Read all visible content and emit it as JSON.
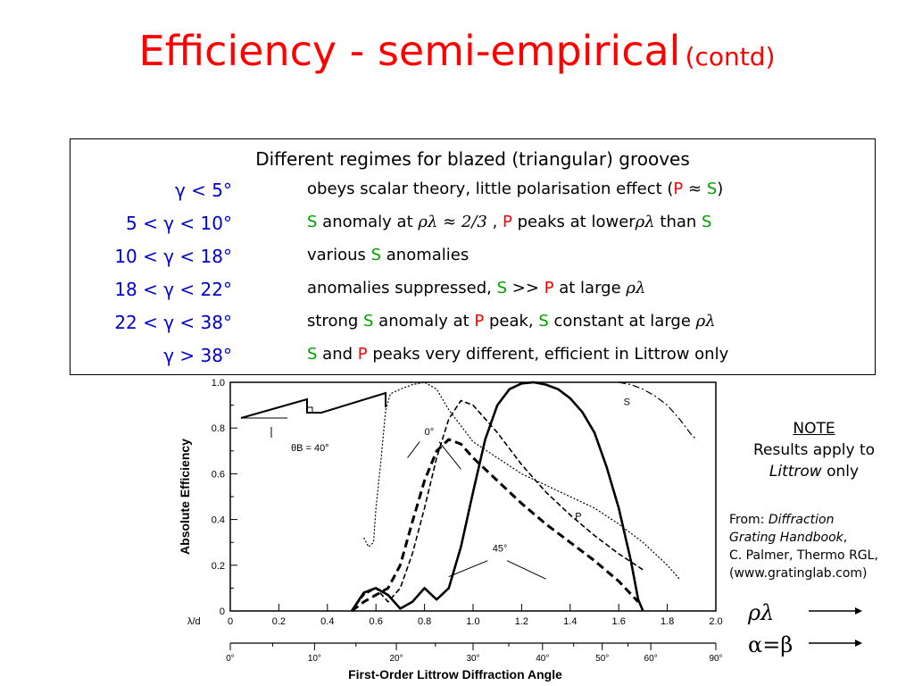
{
  "slide": {
    "title": "Efficiency - semi-empirical",
    "title_suffix": "(contd)"
  },
  "regimes": {
    "heading": "Different regimes for blazed (triangular) grooves",
    "rows": [
      {
        "cond": "γ  < 5°",
        "parts": [
          {
            "t": "obeys scalar theory, little polarisation effect (",
            "c": ""
          },
          {
            "t": "P",
            "c": "red"
          },
          {
            "t": " ≈ ",
            "c": ""
          },
          {
            "t": "S",
            "c": "green"
          },
          {
            "t": ")",
            "c": ""
          }
        ]
      },
      {
        "cond": "5 < γ < 10°",
        "parts": [
          {
            "t": "S",
            "c": "green"
          },
          {
            "t": " anomaly at ",
            "c": ""
          },
          {
            "t": "ρλ ≈ 2/3",
            "c": "sym"
          },
          {
            "t": " , ",
            "c": ""
          },
          {
            "t": "P",
            "c": "red"
          },
          {
            "t": " peaks at lower",
            "c": ""
          },
          {
            "t": "ρλ",
            "c": "sym"
          },
          {
            "t": "  than ",
            "c": ""
          },
          {
            "t": "S",
            "c": "green"
          }
        ]
      },
      {
        "cond": "10 < γ < 18°",
        "parts": [
          {
            "t": "various ",
            "c": ""
          },
          {
            "t": "S",
            "c": "green"
          },
          {
            "t": " anomalies",
            "c": ""
          }
        ]
      },
      {
        "cond": "18 < γ < 22°",
        "parts": [
          {
            "t": "anomalies suppressed, ",
            "c": ""
          },
          {
            "t": "S",
            "c": "green"
          },
          {
            "t": " >> ",
            "c": ""
          },
          {
            "t": "P",
            "c": "red"
          },
          {
            "t": " at large ",
            "c": ""
          },
          {
            "t": "ρλ",
            "c": "sym"
          }
        ]
      },
      {
        "cond": "22 < γ < 38°",
        "parts": [
          {
            "t": "strong ",
            "c": ""
          },
          {
            "t": "S",
            "c": "green"
          },
          {
            "t": " anomaly at ",
            "c": ""
          },
          {
            "t": "P",
            "c": "red"
          },
          {
            "t": " peak, ",
            "c": ""
          },
          {
            "t": "S",
            "c": "green"
          },
          {
            "t": " constant at large ",
            "c": ""
          },
          {
            "t": "ρλ",
            "c": "sym"
          }
        ]
      },
      {
        "cond": "γ > 38°",
        "parts": [
          {
            "t": "S",
            "c": "green"
          },
          {
            "t": " and ",
            "c": ""
          },
          {
            "t": "P",
            "c": "red"
          },
          {
            "t": " peaks very different, efficient in Littrow only",
            "c": ""
          }
        ]
      }
    ]
  },
  "note": {
    "title": "NOTE",
    "line1": "Results apply to",
    "line2_italic": "Littrow",
    "line2_rest": " only"
  },
  "source": {
    "prefix": "From: ",
    "book1": "Diffraction",
    "book2": "Grating Handbook",
    "book2_suffix": ",",
    "author": "C. Palmer, Thermo RGL,",
    "url": "(www.gratinglab.com)"
  },
  "legend_symbols": {
    "rho_lambda": "ρλ",
    "alpha_beta": "α=β"
  },
  "colors": {
    "title": "#ff0000",
    "condition": "#0000cc",
    "S": "#00a000",
    "P": "#ff0000"
  },
  "chart_data": {
    "type": "line",
    "ylabel": "Absolute Efficiency",
    "xlabel": "First-Order Littrow Diffraction Angle",
    "x_axis_label": "λ/d",
    "xlim": [
      0,
      2.0
    ],
    "ylim": [
      0,
      1.0
    ],
    "x_ticks": [
      "0",
      "0.2",
      "0.4",
      "0.6",
      "0.8",
      "1.0",
      "1.2",
      "1.4",
      "1.6",
      "1.8",
      "2.0"
    ],
    "y_ticks": [
      "0",
      "0.2",
      "0.4",
      "0.6",
      "0.8",
      "1.0"
    ],
    "angle_ticks": [
      {
        "label": "0°",
        "x": 0
      },
      {
        "label": "10°",
        "x": 0.347
      },
      {
        "label": "20°",
        "x": 0.684
      },
      {
        "label": "30°",
        "x": 1.0
      },
      {
        "label": "40°",
        "x": 1.286
      },
      {
        "label": "50°",
        "x": 1.532
      },
      {
        "label": "60°",
        "x": 1.732
      },
      {
        "label": "90°",
        "x": 2.0
      }
    ],
    "annotations": [
      {
        "text": "0°",
        "x": 0.8,
        "y": 0.77
      },
      {
        "text": "45°",
        "x": 1.08,
        "y": 0.26
      },
      {
        "text": "S",
        "x": 1.62,
        "y": 0.9
      },
      {
        "text": "P",
        "x": 1.42,
        "y": 0.4
      },
      {
        "text": "θB = 40°",
        "x": 0.25,
        "y": 0.7
      }
    ],
    "series": [
      {
        "style": "solid-thick",
        "x": [
          0.5,
          0.55,
          0.6,
          0.65,
          0.7,
          0.75,
          0.8,
          0.85,
          0.9,
          0.95,
          1.0,
          1.05,
          1.1,
          1.15,
          1.2,
          1.25,
          1.3,
          1.35,
          1.4,
          1.45,
          1.5,
          1.55,
          1.6,
          1.65,
          1.68,
          1.7
        ],
        "y": [
          0.0,
          0.08,
          0.1,
          0.07,
          0.01,
          0.04,
          0.1,
          0.05,
          0.1,
          0.28,
          0.52,
          0.75,
          0.9,
          0.97,
          0.995,
          1.0,
          0.99,
          0.97,
          0.93,
          0.87,
          0.78,
          0.63,
          0.45,
          0.22,
          0.05,
          0.0
        ]
      },
      {
        "style": "dashed-thick",
        "x": [
          0.5,
          0.55,
          0.6,
          0.65,
          0.7,
          0.75,
          0.8,
          0.85,
          0.9,
          0.95,
          1.0,
          1.1,
          1.2,
          1.3,
          1.4,
          1.5,
          1.6,
          1.68
        ],
        "y": [
          0.0,
          0.04,
          0.07,
          0.1,
          0.2,
          0.39,
          0.57,
          0.7,
          0.75,
          0.73,
          0.67,
          0.57,
          0.47,
          0.38,
          0.3,
          0.22,
          0.13,
          0.04
        ]
      },
      {
        "style": "dashed",
        "x": [
          0.5,
          0.55,
          0.6,
          0.65,
          0.7,
          0.75,
          0.8,
          0.85,
          0.9,
          0.95,
          1.0,
          1.1,
          1.2,
          1.3,
          1.4,
          1.5,
          1.6,
          1.7
        ],
        "y": [
          0.0,
          0.07,
          0.1,
          0.04,
          0.1,
          0.25,
          0.45,
          0.67,
          0.84,
          0.92,
          0.9,
          0.78,
          0.64,
          0.52,
          0.42,
          0.33,
          0.25,
          0.18
        ]
      },
      {
        "style": "dotted",
        "x": [
          0.55,
          0.57,
          0.59,
          0.6,
          0.62,
          0.64,
          0.66,
          0.7,
          0.75,
          0.8,
          0.85,
          0.9,
          1.0,
          1.1,
          1.2,
          1.3,
          1.4,
          1.5,
          1.6,
          1.7,
          1.75,
          1.8,
          1.85
        ],
        "y": [
          0.32,
          0.28,
          0.3,
          0.45,
          0.65,
          0.88,
          0.95,
          0.97,
          0.99,
          1.0,
          0.97,
          0.88,
          0.74,
          0.67,
          0.6,
          0.55,
          0.5,
          0.45,
          0.38,
          0.3,
          0.25,
          0.2,
          0.14
        ]
      },
      {
        "style": "dash-dot",
        "x": [
          1.6,
          1.65,
          1.7,
          1.75,
          1.8,
          1.85,
          1.9,
          1.92
        ],
        "y": [
          1.0,
          0.99,
          0.97,
          0.94,
          0.9,
          0.84,
          0.77,
          0.75
        ]
      }
    ]
  }
}
